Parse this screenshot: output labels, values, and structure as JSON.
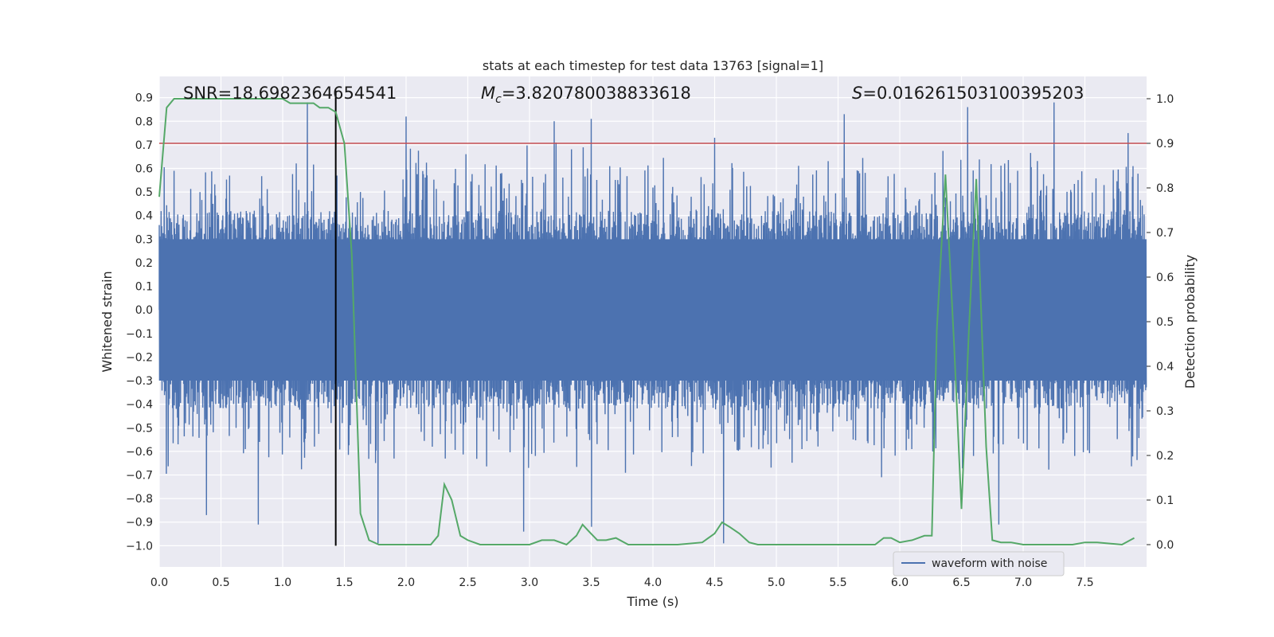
{
  "chart_data": {
    "type": "line",
    "title": "stats at each timestep for test data 13763 [signal=1]",
    "xlabel": "Time (s)",
    "ylabel": "Whitened strain",
    "ylabel_right": "Detection probability",
    "xlim": [
      0,
      8
    ],
    "ylim": [
      -1.09,
      0.99
    ],
    "ylim_right": [
      -0.05,
      1.05
    ],
    "x_ticks": [
      "0.0",
      "0.5",
      "1.0",
      "1.5",
      "2.0",
      "2.5",
      "3.0",
      "3.5",
      "4.0",
      "4.5",
      "5.0",
      "5.5",
      "6.0",
      "6.5",
      "7.0",
      "7.5"
    ],
    "y_ticks": [
      "0.9",
      "0.8",
      "0.7",
      "0.6",
      "0.5",
      "0.4",
      "0.3",
      "0.2",
      "0.1",
      "0.0",
      "−0.1",
      "−0.2",
      "−0.3",
      "−0.4",
      "−0.5",
      "−0.6",
      "−0.7",
      "−0.8",
      "−0.9",
      "−1.0"
    ],
    "y_ticks_right": [
      "1.0",
      "0.9",
      "0.8",
      "0.7",
      "0.6",
      "0.5",
      "0.4",
      "0.3",
      "0.2",
      "0.1",
      "0.0"
    ],
    "annotations": {
      "snr": "SNR=18.6982364654541",
      "mc_symbol": "M",
      "mc_sub": "c",
      "mc_value": "=3.820780038833618",
      "s_symbol": "S",
      "s_value": "=0.016261503100395203"
    },
    "threshold": {
      "axis": "right",
      "value": 0.9,
      "color": "#c44e52"
    },
    "merger_time": 1.43,
    "waveform": {
      "name": "waveform with noise",
      "color": "#4c72b0",
      "n_samples": 1600,
      "typical_min": -0.3,
      "typical_max": 0.3,
      "peaks": [
        {
          "t": 1.2,
          "v": 0.88
        },
        {
          "t": 2.0,
          "v": 0.82
        },
        {
          "t": 3.2,
          "v": 0.8
        },
        {
          "t": 3.5,
          "v": 0.81
        },
        {
          "t": 4.5,
          "v": 0.73
        },
        {
          "t": 5.55,
          "v": 0.83
        },
        {
          "t": 6.55,
          "v": 0.86
        },
        {
          "t": 7.25,
          "v": 0.88
        },
        {
          "t": 7.85,
          "v": 0.75
        }
      ],
      "troughs": [
        {
          "t": 0.38,
          "v": -0.87
        },
        {
          "t": 0.8,
          "v": -0.91
        },
        {
          "t": 1.77,
          "v": -0.99
        },
        {
          "t": 2.95,
          "v": -0.94
        },
        {
          "t": 3.5,
          "v": -0.92
        },
        {
          "t": 4.57,
          "v": -0.99
        },
        {
          "t": 6.8,
          "v": -0.91
        }
      ]
    },
    "probability": {
      "name": "detection probability",
      "color": "#55a868",
      "x": [
        0.0,
        0.06,
        0.12,
        0.2,
        0.3,
        0.4,
        0.5,
        0.6,
        0.7,
        0.8,
        0.9,
        1.0,
        1.06,
        1.12,
        1.18,
        1.25,
        1.3,
        1.37,
        1.43,
        1.5,
        1.56,
        1.63,
        1.7,
        1.78,
        1.85,
        2.0,
        2.1,
        2.2,
        2.26,
        2.31,
        2.37,
        2.44,
        2.5,
        2.6,
        2.7,
        2.8,
        3.0,
        3.1,
        3.2,
        3.3,
        3.38,
        3.43,
        3.48,
        3.55,
        3.62,
        3.7,
        3.8,
        4.0,
        4.2,
        4.4,
        4.5,
        4.56,
        4.62,
        4.7,
        4.78,
        4.85,
        4.95,
        5.1,
        5.3,
        5.5,
        5.6,
        5.8,
        5.87,
        5.93,
        6.0,
        6.1,
        6.2,
        6.26,
        6.3,
        6.37,
        6.44,
        6.5,
        6.56,
        6.62,
        6.7,
        6.75,
        6.82,
        6.9,
        7.0,
        7.2,
        7.4,
        7.5,
        7.6,
        7.8,
        7.9
      ],
      "y": [
        0.78,
        0.98,
        1.0,
        1.0,
        1.0,
        1.0,
        1.0,
        1.0,
        1.0,
        1.0,
        1.0,
        1.0,
        0.99,
        0.99,
        0.99,
        0.99,
        0.98,
        0.98,
        0.97,
        0.9,
        0.65,
        0.07,
        0.01,
        0.0,
        0.0,
        0.0,
        0.0,
        0.0,
        0.02,
        0.135,
        0.1,
        0.02,
        0.01,
        0.0,
        0.0,
        0.0,
        0.0,
        0.01,
        0.01,
        0.0,
        0.02,
        0.045,
        0.03,
        0.01,
        0.01,
        0.015,
        0.0,
        0.0,
        0.0,
        0.005,
        0.025,
        0.05,
        0.04,
        0.025,
        0.005,
        0.0,
        0.0,
        0.0,
        0.0,
        0.0,
        0.0,
        0.0,
        0.015,
        0.015,
        0.005,
        0.01,
        0.02,
        0.02,
        0.48,
        0.83,
        0.45,
        0.08,
        0.48,
        0.82,
        0.22,
        0.01,
        0.005,
        0.005,
        0.0,
        0.0,
        0.0,
        0.005,
        0.005,
        0.0,
        0.015
      ]
    },
    "legend": {
      "label": "waveform with noise",
      "position": "lower-right"
    },
    "grid": true
  }
}
